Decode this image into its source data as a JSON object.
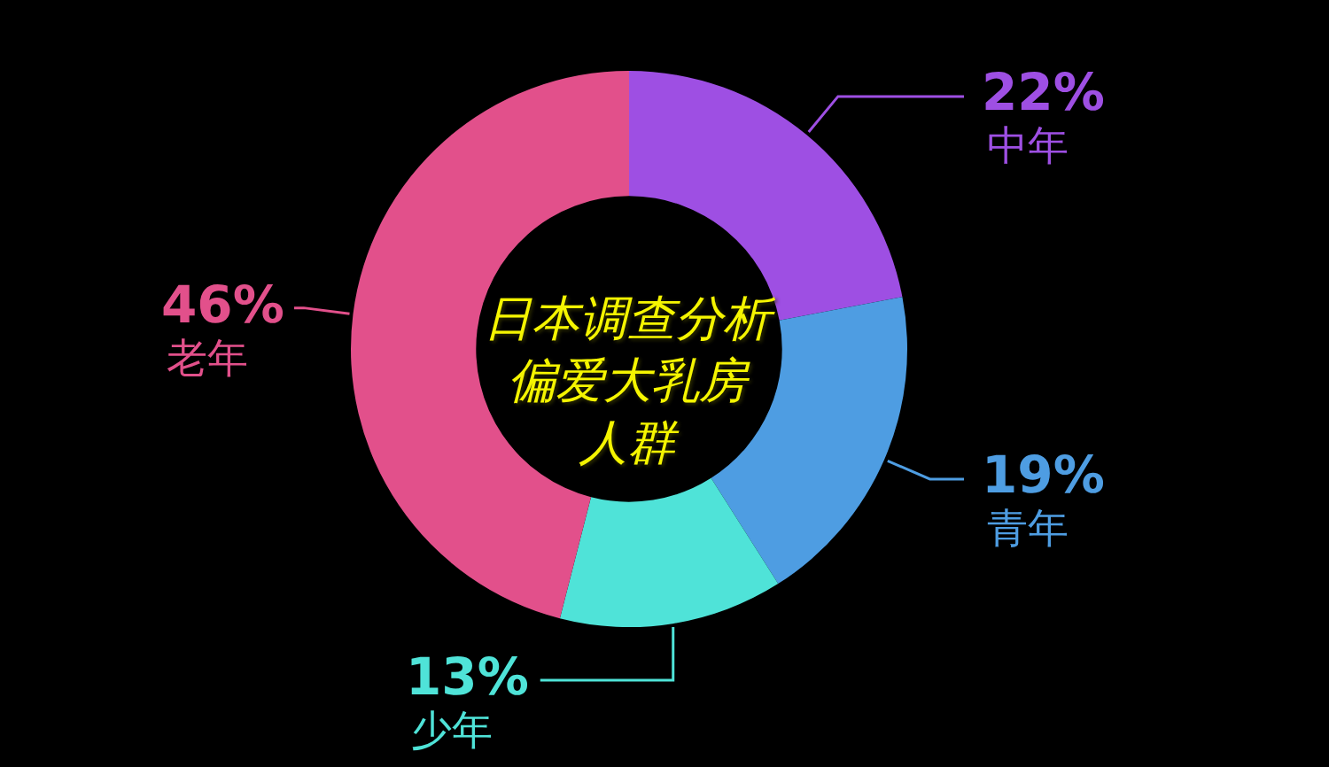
{
  "chart_data": {
    "type": "donut",
    "title": "日本调查分析偏爱大乳房人群",
    "categories": [
      "中年",
      "青年",
      "少年",
      "老年"
    ],
    "values": [
      22,
      19,
      13,
      46
    ],
    "value_labels": [
      "22%",
      "19%",
      "13%",
      "46%"
    ],
    "colors": [
      "#9e4fe3",
      "#4e9de2",
      "#4fe3d8",
      "#e2508b"
    ],
    "legend": false
  }
}
